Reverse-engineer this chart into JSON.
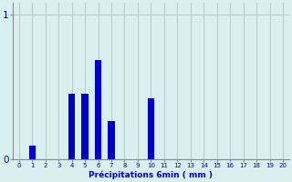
{
  "categories": [
    0,
    1,
    2,
    3,
    4,
    5,
    6,
    7,
    8,
    9,
    10,
    11,
    12,
    13,
    14,
    15,
    16,
    17,
    18,
    19,
    20
  ],
  "values": [
    0,
    0.09,
    0,
    0,
    0.45,
    0.45,
    0.68,
    0.26,
    0,
    0,
    0.42,
    0,
    0,
    0,
    0,
    0,
    0,
    0,
    0,
    0,
    0
  ],
  "bar_color": "#0000cc",
  "background_color": "#d8f0f0",
  "grid_color": "#b8cece",
  "axis_color": "#888888",
  "text_color": "#0000cc",
  "xlabel": "Précipitations 6min ( mm )",
  "yticks": [
    0,
    1
  ],
  "ylim": [
    0,
    1.08
  ],
  "xlim": [
    -0.5,
    20.5
  ],
  "bar_width": 0.5
}
